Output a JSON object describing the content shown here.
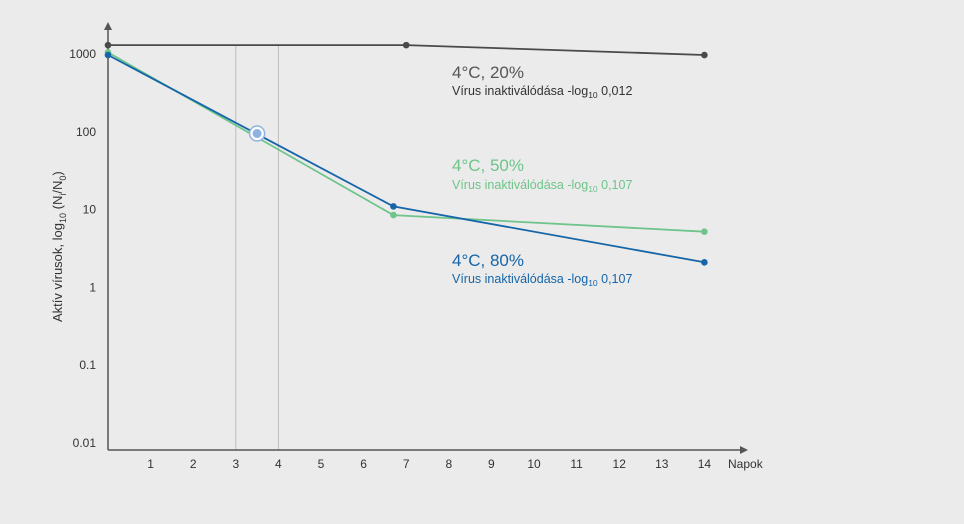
{
  "chart_data": {
    "type": "line",
    "y_scale": "log",
    "ylim": [
      0.01,
      1000
    ],
    "xlim": [
      0,
      14
    ],
    "x_ticks": [
      "1",
      "2",
      "3",
      "4",
      "5",
      "6",
      "7",
      "8",
      "9",
      "10",
      "11",
      "12",
      "13",
      "14"
    ],
    "y_ticks": [
      "0.01",
      "0.1",
      "1",
      "10",
      "100",
      "1000"
    ],
    "xlabel": "Napok",
    "ylabel_main": "Aktív vírusok, log",
    "ylabel_sub": "10",
    "ylabel_paren_open": " (N",
    "ylabel_sub2": "i",
    "ylabel_mid": "/N",
    "ylabel_sub3": "0",
    "ylabel_paren_close": ")",
    "reference_lines_x": [
      3,
      4
    ],
    "marker_point": {
      "x": 3.5,
      "y": 95
    },
    "series": [
      {
        "name": "4°C, 20%",
        "color": "#4a4a4a",
        "points": [
          [
            0,
            1300
          ],
          [
            7,
            1300
          ],
          [
            14,
            970
          ]
        ],
        "note_prefix": "Vírus inaktiválódása -log",
        "note_sub": "10",
        "note_suffix": " 0,012"
      },
      {
        "name": "4°C, 50%",
        "color": "#6ec48a",
        "points": [
          [
            0,
            1050
          ],
          [
            6.7,
            8.5
          ],
          [
            14,
            5.2
          ]
        ],
        "note_prefix": "Vírus inaktiválódása -log",
        "note_sub": "10",
        "note_suffix": " 0,107"
      },
      {
        "name": "4°C, 80%",
        "color": "#1565a8",
        "points": [
          [
            0,
            970
          ],
          [
            6.7,
            11
          ],
          [
            14,
            2.1
          ]
        ],
        "note_prefix": "Vírus inaktiválódása -log",
        "note_sub": "10",
        "note_suffix": " 0,107"
      }
    ]
  }
}
